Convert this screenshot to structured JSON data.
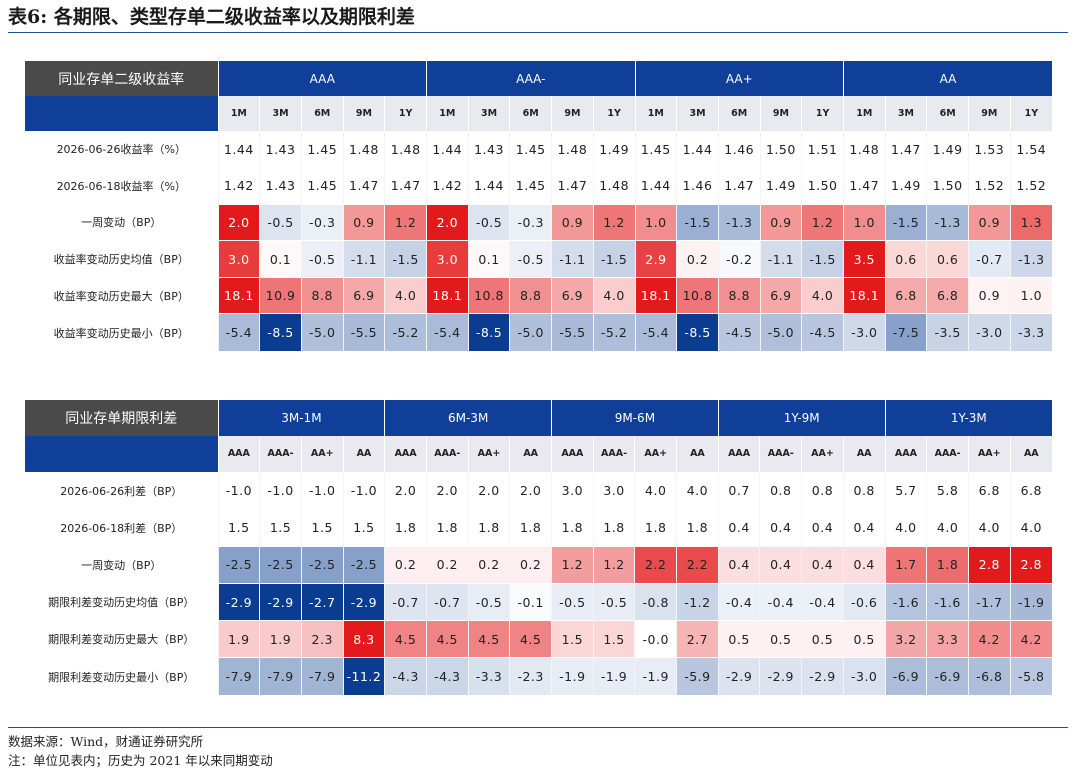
{
  "document": {
    "title": "表6: 各期限、类型存单二级收益率以及期限利差",
    "source": "数据来源：Wind，财通证券研究所",
    "note": "注：单位见表内；历史为 2021 年以来同期变动"
  },
  "table1": {
    "header_label": "同业存单二级收益率",
    "groups": [
      "AAA",
      "AAA-",
      "AA+",
      "AA"
    ],
    "subheaders": [
      "1M",
      "3M",
      "6M",
      "9M",
      "1Y",
      "1M",
      "3M",
      "6M",
      "9M",
      "1Y",
      "1M",
      "3M",
      "6M",
      "9M",
      "1Y",
      "1M",
      "3M",
      "6M",
      "9M",
      "1Y"
    ],
    "rows": [
      {
        "label": "2026-06-26收益率（%）",
        "colored": false,
        "values": [
          "1.44",
          "1.43",
          "1.45",
          "1.48",
          "1.48",
          "1.44",
          "1.43",
          "1.45",
          "1.48",
          "1.49",
          "1.45",
          "1.44",
          "1.46",
          "1.50",
          "1.51",
          "1.48",
          "1.47",
          "1.49",
          "1.53",
          "1.54"
        ]
      },
      {
        "label": "2026-06-18收益率（%）",
        "colored": false,
        "values": [
          "1.42",
          "1.43",
          "1.45",
          "1.47",
          "1.47",
          "1.42",
          "1.44",
          "1.45",
          "1.47",
          "1.48",
          "1.44",
          "1.46",
          "1.47",
          "1.49",
          "1.50",
          "1.47",
          "1.49",
          "1.50",
          "1.52",
          "1.52"
        ]
      },
      {
        "label": "一周变动（BP）",
        "colored": true,
        "values": [
          "2.0",
          "-0.5",
          "-0.3",
          "0.9",
          "1.2",
          "2.0",
          "-0.5",
          "-0.3",
          "0.9",
          "1.2",
          "1.0",
          "-1.5",
          "-1.3",
          "0.9",
          "1.2",
          "1.0",
          "-1.5",
          "-1.3",
          "0.9",
          "1.3"
        ]
      },
      {
        "label": "收益率变动历史均值（BP）",
        "colored": true,
        "values": [
          "3.0",
          "0.1",
          "-0.5",
          "-1.1",
          "-1.5",
          "3.0",
          "0.1",
          "-0.5",
          "-1.1",
          "-1.5",
          "2.9",
          "0.2",
          "-0.2",
          "-1.1",
          "-1.5",
          "3.5",
          "0.6",
          "0.6",
          "-0.7",
          "-1.3"
        ]
      },
      {
        "label": "收益率变动历史最大（BP）",
        "colored": true,
        "values": [
          "18.1",
          "10.9",
          "8.8",
          "6.9",
          "4.0",
          "18.1",
          "10.8",
          "8.8",
          "6.9",
          "4.0",
          "18.1",
          "10.8",
          "8.8",
          "6.9",
          "4.0",
          "18.1",
          "6.8",
          "6.8",
          "0.9",
          "1.0"
        ]
      },
      {
        "label": "收益率变动历史最小（BP）",
        "colored": true,
        "values": [
          "-5.4",
          "-8.5",
          "-5.0",
          "-5.5",
          "-5.2",
          "-5.4",
          "-8.5",
          "-5.0",
          "-5.5",
          "-5.2",
          "-5.4",
          "-8.5",
          "-4.5",
          "-5.0",
          "-4.5",
          "-3.0",
          "-7.5",
          "-3.5",
          "-3.0",
          "-3.3"
        ]
      }
    ]
  },
  "table2": {
    "header_label": "同业存单期限利差",
    "groups": [
      "3M-1M",
      "6M-3M",
      "9M-6M",
      "1Y-9M",
      "1Y-3M"
    ],
    "subheaders": [
      "AAA",
      "AAA-",
      "AA+",
      "AA",
      "AAA",
      "AAA-",
      "AA+",
      "AA",
      "AAA",
      "AAA-",
      "AA+",
      "AA",
      "AAA",
      "AAA-",
      "AA+",
      "AA",
      "AAA",
      "AAA-",
      "AA+",
      "AA"
    ],
    "rows": [
      {
        "label": "2026-06-26利差（BP）",
        "colored": false,
        "values": [
          "-1.0",
          "-1.0",
          "-1.0",
          "-1.0",
          "2.0",
          "2.0",
          "2.0",
          "2.0",
          "3.0",
          "3.0",
          "4.0",
          "4.0",
          "0.7",
          "0.8",
          "0.8",
          "0.8",
          "5.7",
          "5.8",
          "6.8",
          "6.8"
        ]
      },
      {
        "label": "2026-06-18利差（BP）",
        "colored": false,
        "values": [
          "1.5",
          "1.5",
          "1.5",
          "1.5",
          "1.8",
          "1.8",
          "1.8",
          "1.8",
          "1.8",
          "1.8",
          "1.8",
          "1.8",
          "0.4",
          "0.4",
          "0.4",
          "0.4",
          "4.0",
          "4.0",
          "4.0",
          "4.0"
        ]
      },
      {
        "label": "一周变动（BP）",
        "colored": true,
        "values": [
          "-2.5",
          "-2.5",
          "-2.5",
          "-2.5",
          "0.2",
          "0.2",
          "0.2",
          "0.2",
          "1.2",
          "1.2",
          "2.2",
          "2.2",
          "0.4",
          "0.4",
          "0.4",
          "0.4",
          "1.7",
          "1.8",
          "2.8",
          "2.8"
        ]
      },
      {
        "label": "期限利差变动历史均值（BP）",
        "colored": true,
        "values": [
          "-2.9",
          "-2.9",
          "-2.7",
          "-2.9",
          "-0.7",
          "-0.7",
          "-0.5",
          "-0.1",
          "-0.5",
          "-0.5",
          "-0.8",
          "-1.2",
          "-0.4",
          "-0.4",
          "-0.4",
          "-0.6",
          "-1.6",
          "-1.6",
          "-1.7",
          "-1.9"
        ]
      },
      {
        "label": "期限利差变动历史最大（BP）",
        "colored": true,
        "values": [
          "1.9",
          "1.9",
          "2.3",
          "8.3",
          "4.5",
          "4.5",
          "4.5",
          "4.5",
          "1.5",
          "1.5",
          "-0.0",
          "2.7",
          "0.5",
          "0.5",
          "0.5",
          "0.5",
          "3.2",
          "3.3",
          "4.2",
          "4.2"
        ]
      },
      {
        "label": "期限利差变动历史最小（BP）",
        "colored": true,
        "values": [
          "-7.9",
          "-7.9",
          "-7.9",
          "-11.2",
          "-4.3",
          "-4.3",
          "-3.3",
          "-2.3",
          "-1.9",
          "-1.9",
          "-1.9",
          "-5.9",
          "-2.9",
          "-2.9",
          "-2.9",
          "-3.0",
          "-6.9",
          "-6.9",
          "-6.8",
          "-5.8"
        ]
      }
    ]
  },
  "colors": {
    "header_dark": "#4a4a4a",
    "header_blue": "#0f3f98",
    "subheader_bg": "#e9eaf0",
    "positive_max": "#e31a1c",
    "negative_max": "#0a3d91",
    "neutral": "#ffffff"
  }
}
